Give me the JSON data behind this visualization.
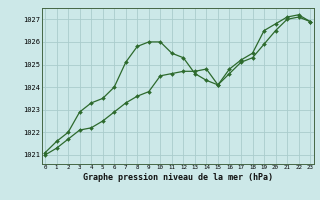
{
  "line1_x": [
    0,
    1,
    2,
    3,
    4,
    5,
    6,
    7,
    8,
    9,
    10,
    11,
    12,
    13,
    14,
    15,
    16,
    17,
    18,
    19,
    20,
    21,
    22,
    23
  ],
  "line1_y": [
    1021.1,
    1021.6,
    1022.0,
    1022.9,
    1023.3,
    1023.5,
    1024.0,
    1025.1,
    1025.8,
    1026.0,
    1026.0,
    1025.5,
    1025.3,
    1024.6,
    1024.3,
    1024.1,
    1024.8,
    1025.2,
    1025.5,
    1026.5,
    1026.8,
    1027.1,
    1027.2,
    1026.9
  ],
  "line2_x": [
    0,
    1,
    2,
    3,
    4,
    5,
    6,
    7,
    8,
    9,
    10,
    11,
    12,
    13,
    14,
    15,
    16,
    17,
    18,
    19,
    20,
    21,
    22,
    23
  ],
  "line2_y": [
    1021.0,
    1021.3,
    1021.7,
    1022.1,
    1022.2,
    1022.5,
    1022.9,
    1023.3,
    1023.6,
    1023.8,
    1024.5,
    1024.6,
    1024.7,
    1024.7,
    1024.8,
    1024.1,
    1024.6,
    1025.1,
    1025.3,
    1025.9,
    1026.5,
    1027.0,
    1027.1,
    1026.9
  ],
  "line_color": "#2d6a2d",
  "bg_color": "#cce8e8",
  "grid_color": "#aacccc",
  "ylabel_ticks": [
    1021,
    1022,
    1023,
    1024,
    1025,
    1026,
    1027
  ],
  "xlabel_ticks": [
    0,
    1,
    2,
    3,
    4,
    5,
    6,
    7,
    8,
    9,
    10,
    11,
    12,
    13,
    14,
    15,
    16,
    17,
    18,
    19,
    20,
    21,
    22,
    23
  ],
  "ylim": [
    1020.6,
    1027.5
  ],
  "xlim": [
    -0.3,
    23.3
  ],
  "xlabel": "Graphe pression niveau de la mer (hPa)"
}
